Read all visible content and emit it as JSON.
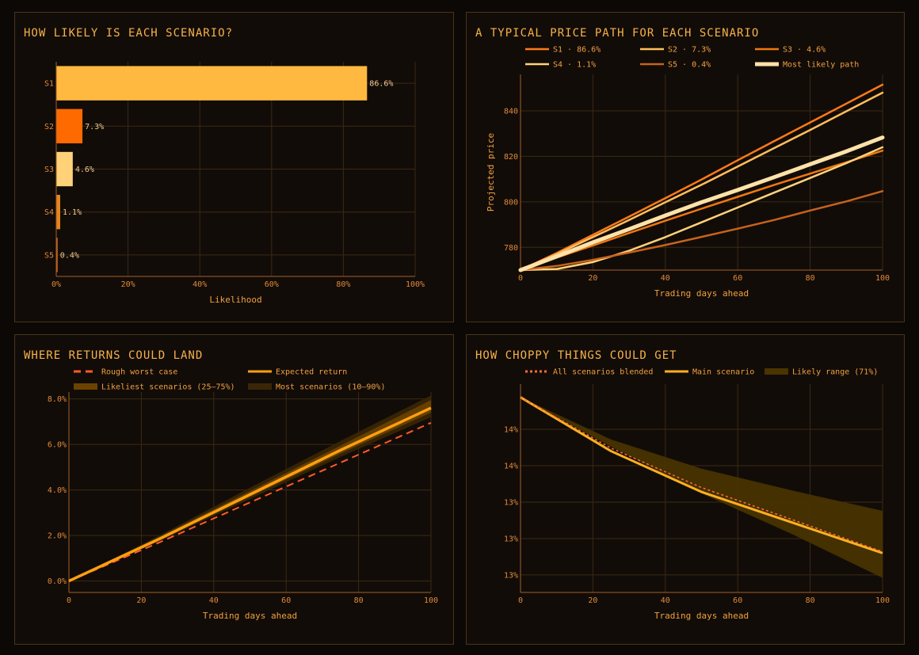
{
  "colors": {
    "grid": "#3a2a14",
    "axis": "#a0602a",
    "tick": "#e08a3a",
    "label": "#f0a040",
    "title": "#f7b24a"
  },
  "charts": [
    {
      "title": "HOW LIKELY IS EACH SCENARIO?",
      "chart_data": {
        "type": "bar",
        "orientation": "horizontal",
        "categories": [
          "S1",
          "S2",
          "S3",
          "S4",
          "S5"
        ],
        "values": [
          86.6,
          7.3,
          4.6,
          1.1,
          0.4
        ],
        "value_labels": [
          "86.6%",
          "7.3%",
          "4.6%",
          "1.1%",
          "0.4%"
        ],
        "colors": [
          "#ffb940",
          "#ff6a00",
          "#ffd27a",
          "#e3861e",
          "#c6631c"
        ],
        "xlabel": "Likelihood",
        "xlim": [
          0,
          100
        ],
        "x_ticks": [
          0,
          20,
          40,
          60,
          80,
          100
        ],
        "x_tick_labels": [
          "0%",
          "20%",
          "40%",
          "60%",
          "80%",
          "100%"
        ],
        "grid": true
      }
    },
    {
      "title": "A TYPICAL PRICE PATH FOR EACH SCENARIO",
      "chart_data": {
        "type": "line",
        "xlabel": "Trading days ahead",
        "ylabel": "Projected price",
        "xlim": [
          0,
          100
        ],
        "ylim": [
          770,
          856
        ],
        "x_ticks": [
          0,
          20,
          40,
          60,
          80,
          100
        ],
        "y_ticks": [
          780,
          800,
          820,
          840
        ],
        "legend_position": "top",
        "grid": true,
        "series": [
          {
            "name": "S1 · 86.6%",
            "color": "#ff7a1a",
            "width": 2.5,
            "x": [
              0,
              10,
              20,
              30,
              40,
              50,
              60,
              70,
              80,
              90,
              100
            ],
            "values": [
              770,
              777.5,
              785.5,
              793.5,
              801.6,
              809.8,
              818.3,
              826.6,
              834.9,
              843.2,
              851.5
            ]
          },
          {
            "name": "S2 · 7.3%",
            "color": "#ffbe5c",
            "width": 2.5,
            "x": [
              0,
              10,
              20,
              30,
              40,
              50,
              60,
              70,
              80,
              90,
              100
            ],
            "values": [
              770,
              777,
              784.5,
              792,
              799.8,
              807.5,
              815.5,
              823.6,
              831.6,
              839.8,
              848
            ]
          },
          {
            "name": "S3 · 4.6%",
            "color": "#f07810",
            "width": 2.5,
            "x": [
              0,
              10,
              20,
              30,
              40,
              50,
              60,
              70,
              80,
              90,
              100
            ],
            "values": [
              770,
              775.5,
              780.8,
              786.3,
              791.7,
              797,
              802.2,
              807.4,
              812.4,
              817.4,
              822.5
            ]
          },
          {
            "name": "S4 · 1.1%",
            "color": "#ffd27a",
            "width": 2.5,
            "x": [
              0,
              10,
              20,
              30,
              40,
              50,
              60,
              70,
              80,
              90,
              100
            ],
            "values": [
              770,
              770.5,
              773.5,
              778.5,
              784.5,
              791,
              797.5,
              804,
              810.5,
              817,
              824
            ]
          },
          {
            "name": "S5 · 0.4%",
            "color": "#c6631c",
            "width": 2.5,
            "x": [
              0,
              10,
              20,
              30,
              40,
              50,
              60,
              70,
              80,
              90,
              100
            ],
            "values": [
              770,
              771.8,
              774.5,
              777.7,
              781,
              784.6,
              788.2,
              792,
              796.2,
              800.2,
              804.7
            ]
          },
          {
            "name": "Most likely path",
            "color": "#ffe2a8",
            "width": 5,
            "x": [
              0,
              10,
              20,
              30,
              40,
              50,
              60,
              70,
              80,
              90,
              100
            ],
            "values": [
              770,
              776,
              782.2,
              788,
              794,
              799.8,
              805.2,
              810.8,
              816.5,
              822.2,
              828.3
            ]
          }
        ]
      }
    },
    {
      "title": "WHERE RETURNS COULD LAND",
      "chart_data": {
        "type": "area",
        "xlabel": "Trading days ahead",
        "ylabel": "",
        "xlim": [
          0,
          100
        ],
        "ylim": [
          -0.5,
          8.3
        ],
        "x_ticks": [
          0,
          20,
          40,
          60,
          80,
          100
        ],
        "y_ticks": [
          0,
          2,
          4,
          6,
          8
        ],
        "y_tick_labels": [
          "0.0%",
          "2.0%",
          "4.0%",
          "6.0%",
          "8.0%"
        ],
        "legend_position": "top",
        "grid": true,
        "x": [
          0,
          25,
          50,
          75,
          100
        ],
        "bands": [
          {
            "name": "Most scenarios (10–90%)",
            "color": "#3a2606",
            "lower": [
              0,
              1.75,
              3.6,
              5.45,
              7.2
            ],
            "upper": [
              0,
              2.0,
              4.1,
              6.15,
              8.15
            ]
          },
          {
            "name": "Likeliest scenarios (25–75%)",
            "color": "#6b4300",
            "lower": [
              0,
              1.8,
              3.7,
              5.6,
              7.4
            ],
            "upper": [
              0,
              1.95,
              3.95,
              5.95,
              7.95
            ]
          }
        ],
        "series": [
          {
            "name": "Rough worst case",
            "color": "#ff5a2a",
            "dash": "9,6",
            "values": [
              0,
              1.7,
              3.45,
              5.2,
              6.95
            ]
          },
          {
            "name": "Expected return",
            "color": "#ffa010",
            "values": [
              0,
              1.85,
              3.8,
              5.75,
              7.6
            ]
          }
        ]
      }
    },
    {
      "title": "HOW CHOPPY THINGS COULD GET",
      "chart_data": {
        "type": "line",
        "xlabel": "Trading days ahead",
        "ylabel": "",
        "xlim": [
          0,
          100
        ],
        "ylim": [
          12.78,
          14.21
        ],
        "x_ticks": [
          0,
          20,
          40,
          60,
          80,
          100
        ],
        "y_ticks": [
          12.9,
          13.15,
          13.4,
          13.65,
          13.9
        ],
        "y_tick_labels": [
          "13%",
          "13%",
          "13%",
          "14%",
          "14%"
        ],
        "legend_position": "top",
        "grid": true,
        "x": [
          0,
          25,
          50,
          75,
          100
        ],
        "band": {
          "name": "Likely range (71%)",
          "color": "#4a3400",
          "lower": [
            14.12,
            13.78,
            13.46,
            13.18,
            12.88
          ],
          "upper": [
            14.12,
            13.83,
            13.63,
            13.48,
            13.34
          ]
        },
        "series": [
          {
            "name": "All scenarios blended",
            "color": "#ff6a3a",
            "dash": "3,3",
            "values": [
              14.12,
              13.77,
              13.5,
              13.28,
              13.06
            ]
          },
          {
            "name": "Main scenario",
            "color": "#ffb020",
            "values": [
              14.12,
              13.75,
              13.47,
              13.26,
              13.05
            ]
          }
        ]
      }
    }
  ]
}
